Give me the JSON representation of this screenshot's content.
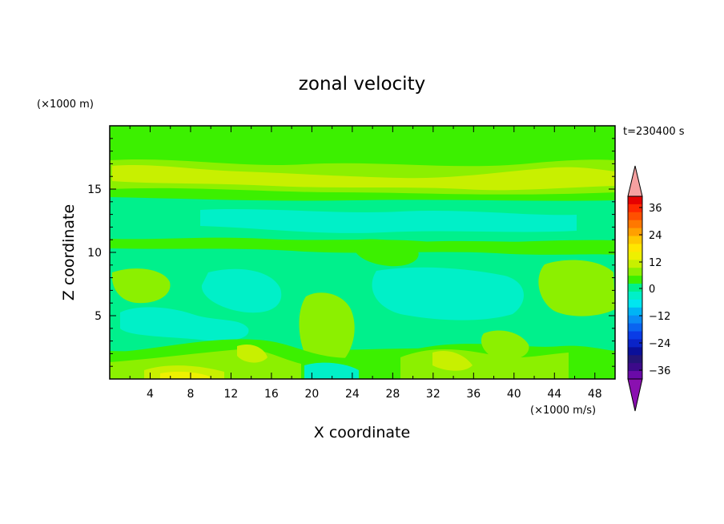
{
  "chart_data": {
    "type": "heatmap",
    "title": "zonal velocity",
    "xlabel": "X coordinate",
    "ylabel": "Z coordinate",
    "x_units": "(×1000 m/s)",
    "y_units": "(×1000 m)",
    "time_label": "t=230400 s",
    "xlim": [
      0,
      50
    ],
    "ylim": [
      0,
      20
    ],
    "x_ticks": [
      "4",
      "8",
      "12",
      "16",
      "20",
      "24",
      "28",
      "32",
      "36",
      "40",
      "44",
      "48"
    ],
    "y_ticks": [
      "5",
      "10",
      "15"
    ],
    "colorbar": {
      "levels": [
        -42,
        -39,
        -36,
        -33,
        -30,
        -27,
        -24,
        -21,
        -18,
        -15,
        -12,
        -9,
        -6,
        -3,
        0,
        3,
        6,
        9,
        12,
        15,
        18,
        21,
        24,
        27,
        30,
        33,
        36,
        39,
        42
      ],
      "tick_labels": [
        "36",
        "24",
        "12",
        "0",
        "−12",
        "−24",
        "−36"
      ],
      "colors": [
        "#6a0aa8",
        "#3c0a8a",
        "#241478",
        "#0a0f9a",
        "#0a23c8",
        "#0a3ce6",
        "#0a64f0",
        "#0a8cf5",
        "#00b4f5",
        "#00e6f0",
        "#00f0c8",
        "#00f08c",
        "#3cf000",
        "#8cf000",
        "#c8f000",
        "#eef000",
        "#ffe600",
        "#ffc800",
        "#ffa000",
        "#ff7800",
        "#ff5000",
        "#ff2800",
        "#e60000",
        "#f5a0a0",
        "#8a10b0"
      ],
      "over_color": "#f5a0a0",
      "under_color": "#8a10b0"
    },
    "z_bands": [
      {
        "z": [
          0,
          1.5
        ],
        "dominant_value": 3
      },
      {
        "z": [
          1.5,
          5.5
        ],
        "dominant_value": -6
      },
      {
        "z": [
          5.5,
          10.5
        ],
        "dominant_value": -6
      },
      {
        "z": [
          10.5,
          11.5
        ],
        "dominant_value": 0
      },
      {
        "z": [
          11.5,
          14.5
        ],
        "dominant_value": -9
      },
      {
        "z": [
          14.5,
          17.5
        ],
        "dominant_value": 6
      },
      {
        "z": [
          17.5,
          20
        ],
        "dominant_value": 0
      }
    ]
  }
}
